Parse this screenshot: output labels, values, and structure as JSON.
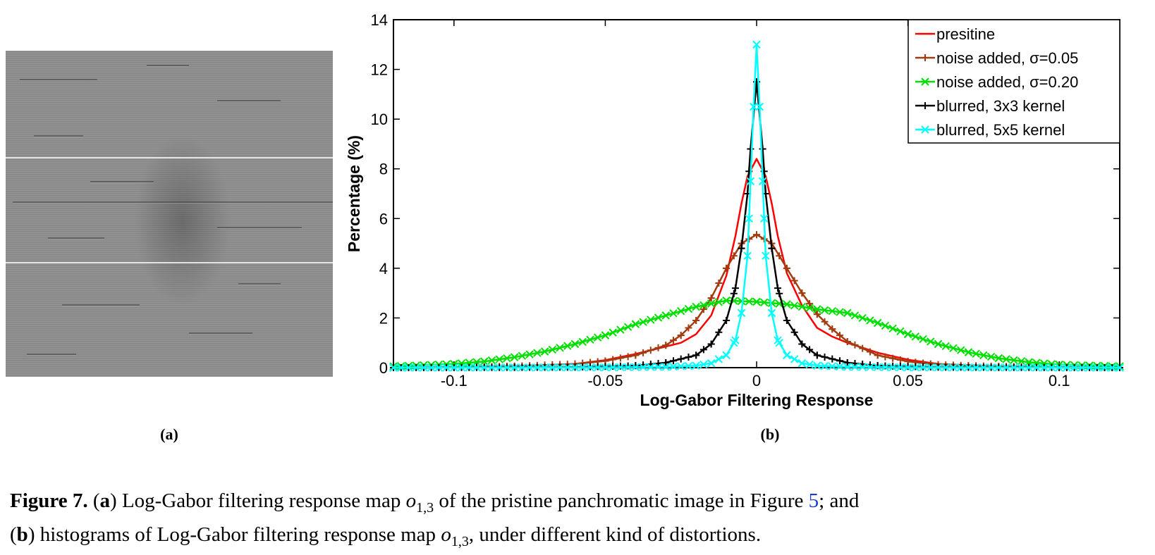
{
  "panel_a": {
    "label": "(a)",
    "image_alt": "Log-Gabor filtering response map"
  },
  "panel_b": {
    "label": "(b)"
  },
  "caption": {
    "fig_label": "Figure 7.",
    "a_open": "(",
    "a_letter": "a",
    "a_text": ") Log-Gabor filtering response map ",
    "o_sym": "o",
    "o_sub": "1,3",
    "a_text2": " of the pristine panchromatic image in Figure ",
    "ref": "5",
    "a_text3": "; and",
    "b_open": "(",
    "b_letter": "b",
    "b_text": ") histograms of Log-Gabor filtering response map ",
    "b_text2": ", under different kind of distortions."
  },
  "chart_data": {
    "type": "line",
    "title": "",
    "xlabel": "Log-Gabor Filtering Response",
    "ylabel": "Percentage (%)",
    "xlim": [
      -0.12,
      0.12
    ],
    "ylim": [
      0,
      14
    ],
    "xticks": [
      -0.1,
      -0.05,
      0,
      0.05,
      0.1
    ],
    "xtick_labels": [
      "-0.1",
      "-0.05",
      "0",
      "0.05",
      "0.1"
    ],
    "yticks": [
      0,
      2,
      4,
      6,
      8,
      10,
      12,
      14
    ],
    "ytick_labels": [
      "0",
      "2",
      "4",
      "6",
      "8",
      "10",
      "12",
      "14"
    ],
    "grid": false,
    "legend_position": "top-right",
    "series": [
      {
        "name": "presitine",
        "color": "#ff0000",
        "marker": "none",
        "x": [
          -0.12,
          -0.1,
          -0.08,
          -0.06,
          -0.05,
          -0.04,
          -0.03,
          -0.025,
          -0.02,
          -0.015,
          -0.01,
          -0.007,
          -0.005,
          -0.003,
          0,
          0.003,
          0.005,
          0.007,
          0.01,
          0.015,
          0.02,
          0.025,
          0.03,
          0.04,
          0.05,
          0.06,
          0.08,
          0.1,
          0.12
        ],
        "y": [
          0.0,
          0.02,
          0.06,
          0.15,
          0.3,
          0.55,
          0.85,
          1.0,
          1.35,
          2.1,
          3.7,
          5.3,
          6.6,
          7.7,
          8.4,
          7.7,
          6.6,
          5.3,
          3.8,
          2.5,
          1.6,
          1.25,
          1.0,
          0.6,
          0.32,
          0.15,
          0.05,
          0.02,
          0.0
        ]
      },
      {
        "name": "noise added, σ=0.05",
        "color": "#a23c10",
        "marker": "plus",
        "x": [
          -0.12,
          -0.1,
          -0.08,
          -0.06,
          -0.05,
          -0.04,
          -0.03,
          -0.025,
          -0.02,
          -0.015,
          -0.01,
          -0.005,
          0,
          0.005,
          0.01,
          0.015,
          0.02,
          0.025,
          0.03,
          0.04,
          0.05,
          0.06,
          0.08,
          0.1,
          0.12
        ],
        "y": [
          0.0,
          0.02,
          0.06,
          0.15,
          0.27,
          0.5,
          0.9,
          1.3,
          1.9,
          2.8,
          4.0,
          5.0,
          5.35,
          5.0,
          4.0,
          3.0,
          2.15,
          1.55,
          1.05,
          0.5,
          0.25,
          0.12,
          0.05,
          0.02,
          0.0
        ]
      },
      {
        "name": "noise added, σ=0.20",
        "color": "#00e000",
        "marker": "x",
        "x": [
          -0.12,
          -0.1,
          -0.09,
          -0.08,
          -0.07,
          -0.06,
          -0.05,
          -0.04,
          -0.03,
          -0.02,
          -0.01,
          0,
          0.01,
          0.02,
          0.03,
          0.04,
          0.05,
          0.06,
          0.07,
          0.08,
          0.09,
          0.1,
          0.12
        ],
        "y": [
          0.05,
          0.15,
          0.25,
          0.42,
          0.65,
          0.95,
          1.3,
          1.75,
          2.1,
          2.45,
          2.7,
          2.65,
          2.55,
          2.35,
          2.2,
          1.8,
          1.35,
          0.95,
          0.62,
          0.38,
          0.22,
          0.12,
          0.05
        ]
      },
      {
        "name": "blurred, 3x3 kernel",
        "color": "#000000",
        "marker": "plus",
        "x": [
          -0.12,
          -0.08,
          -0.06,
          -0.04,
          -0.03,
          -0.02,
          -0.015,
          -0.01,
          -0.007,
          -0.005,
          -0.003,
          -0.002,
          0,
          0.002,
          0.003,
          0.005,
          0.007,
          0.01,
          0.015,
          0.02,
          0.03,
          0.04,
          0.06,
          0.08,
          0.12
        ],
        "y": [
          0.0,
          0.01,
          0.02,
          0.08,
          0.2,
          0.5,
          0.95,
          1.9,
          3.2,
          4.8,
          7.0,
          8.8,
          11.5,
          8.8,
          7.0,
          4.8,
          3.2,
          1.9,
          0.95,
          0.5,
          0.2,
          0.08,
          0.02,
          0.01,
          0.0
        ]
      },
      {
        "name": "blurred, 5x5 kernel",
        "color": "#00ffff",
        "marker": "x",
        "x": [
          -0.12,
          -0.05,
          -0.03,
          -0.02,
          -0.015,
          -0.01,
          -0.007,
          -0.005,
          -0.003,
          -0.002,
          -0.001,
          0,
          0.001,
          0.002,
          0.003,
          0.005,
          0.007,
          0.01,
          0.015,
          0.02,
          0.03,
          0.05,
          0.12
        ],
        "y": [
          0.0,
          0.01,
          0.03,
          0.08,
          0.18,
          0.5,
          1.1,
          2.2,
          4.5,
          7.5,
          10.5,
          13.0,
          10.5,
          7.5,
          4.5,
          2.2,
          1.1,
          0.5,
          0.18,
          0.08,
          0.03,
          0.01,
          0.0
        ]
      }
    ]
  }
}
